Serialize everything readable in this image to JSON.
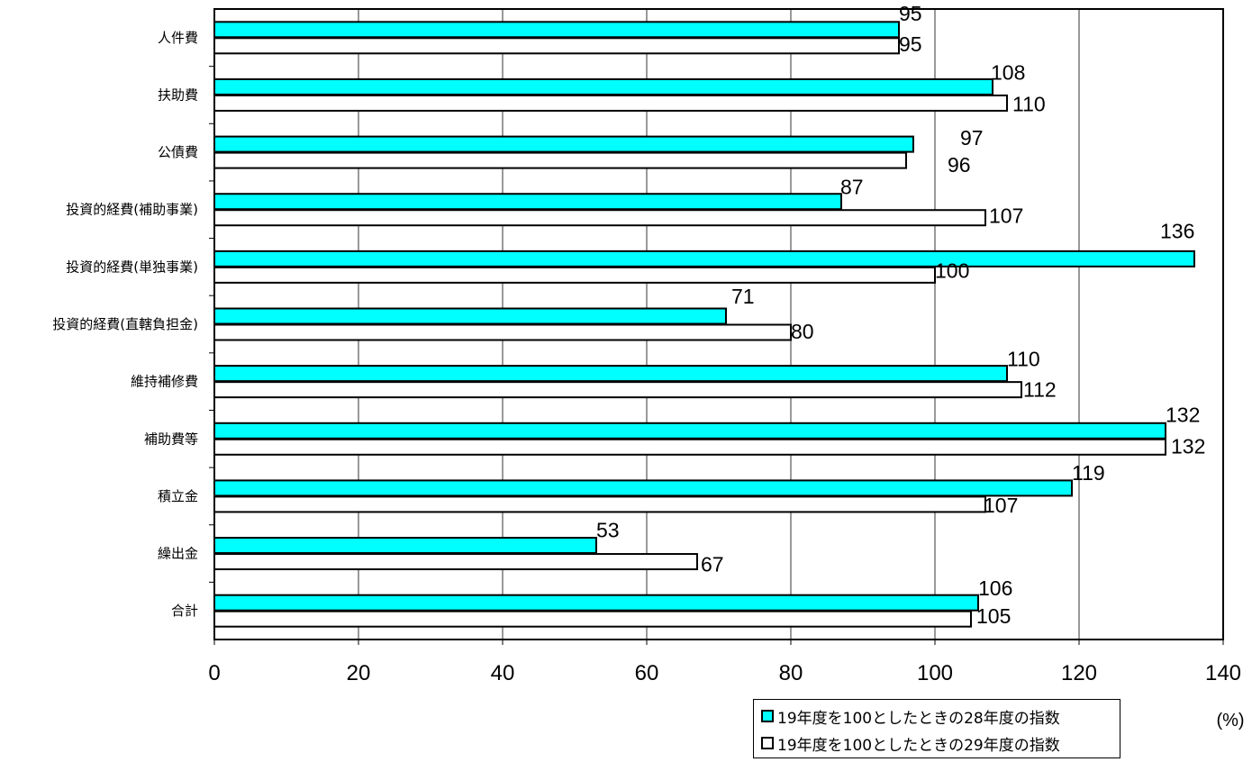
{
  "chart_data": {
    "type": "bar",
    "orientation": "horizontal",
    "categories": [
      "人件費",
      "扶助費",
      "公債費",
      "投資的経費(補助事業)",
      "投資的経費(単独事業)",
      "投資的経費(直轄負担金)",
      "維持補修費",
      "補助費等",
      "積立金",
      "繰出金",
      "合計"
    ],
    "series": [
      {
        "name": "19年度を100としたときの28年度の指数",
        "values": [
          95,
          108,
          97,
          87,
          136,
          71,
          110,
          132,
          119,
          53,
          106
        ],
        "color": "#00ffff"
      },
      {
        "name": "19年度を100としたときの29年度の指数",
        "values": [
          95,
          110,
          96,
          107,
          100,
          80,
          112,
          132,
          107,
          67,
          105
        ],
        "color": "#ffffff"
      }
    ],
    "xlim": [
      0,
      140
    ],
    "xticks": [
      "0",
      "20",
      "40",
      "60",
      "80",
      "100",
      "120",
      "140"
    ],
    "unit": "(%)",
    "grid": "vertical",
    "legend_position": "bottom-right"
  }
}
